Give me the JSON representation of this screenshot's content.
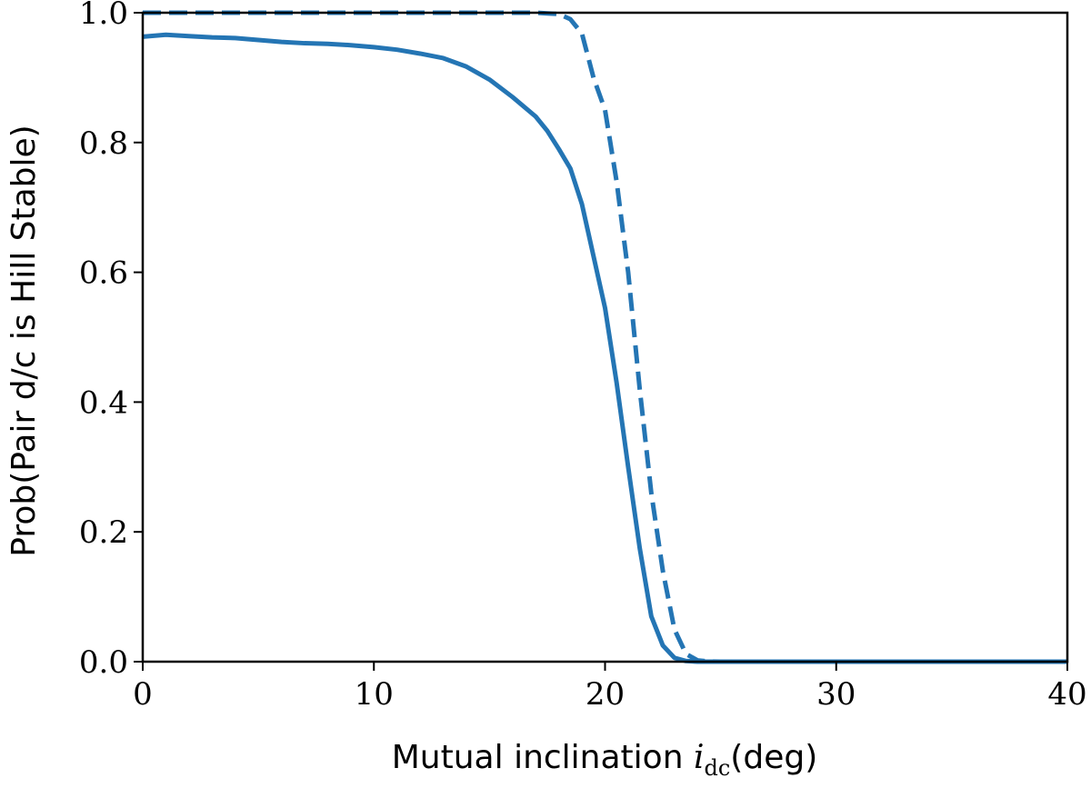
{
  "chart_data": {
    "type": "line",
    "title": "",
    "xlabel_prefix": "Mutual inclination ",
    "xlabel_symbol": "i",
    "xlabel_subscript": "dc",
    "xlabel_suffix": "(deg)",
    "ylabel": "Prob(Pair d/c is Hill Stable)",
    "xlim": [
      0,
      40
    ],
    "ylim": [
      0,
      1
    ],
    "xticks": [
      0,
      10,
      20,
      30,
      40
    ],
    "yticks": [
      0.0,
      0.2,
      0.4,
      0.6,
      0.8,
      1.0
    ],
    "xtick_labels": [
      "0",
      "10",
      "20",
      "30",
      "40"
    ],
    "ytick_labels": [
      "0.0",
      "0.2",
      "0.4",
      "0.6",
      "0.8",
      "1.0"
    ],
    "grid": false,
    "color": "#2475b4",
    "series": [
      {
        "style": "solid",
        "x": [
          0,
          1,
          2,
          3,
          4,
          5,
          6,
          7,
          8,
          9,
          10,
          11,
          12,
          13,
          14,
          15,
          16,
          17,
          17.5,
          18,
          18.5,
          19,
          19.5,
          20,
          20.5,
          21,
          21.5,
          22,
          22.5,
          23,
          23.5,
          24,
          25,
          30,
          40
        ],
        "y": [
          0.963,
          0.966,
          0.964,
          0.962,
          0.961,
          0.958,
          0.955,
          0.953,
          0.952,
          0.95,
          0.947,
          0.943,
          0.937,
          0.93,
          0.917,
          0.897,
          0.87,
          0.84,
          0.818,
          0.79,
          0.76,
          0.705,
          0.625,
          0.545,
          0.43,
          0.3,
          0.175,
          0.07,
          0.025,
          0.006,
          0.001,
          0,
          0,
          0,
          0
        ]
      },
      {
        "style": "dashed",
        "x": [
          0,
          5,
          10,
          15,
          17,
          17.5,
          18,
          18.5,
          19,
          19.5,
          20,
          20.5,
          21,
          21.5,
          22,
          22.5,
          23,
          23.5,
          24,
          24.5,
          25,
          30,
          40
        ],
        "y": [
          1.0,
          1.0,
          1.0,
          1.0,
          1.0,
          0.999,
          0.998,
          0.99,
          0.968,
          0.9,
          0.85,
          0.74,
          0.6,
          0.42,
          0.26,
          0.14,
          0.05,
          0.012,
          0.002,
          0.0003,
          0,
          0,
          0
        ]
      }
    ]
  }
}
